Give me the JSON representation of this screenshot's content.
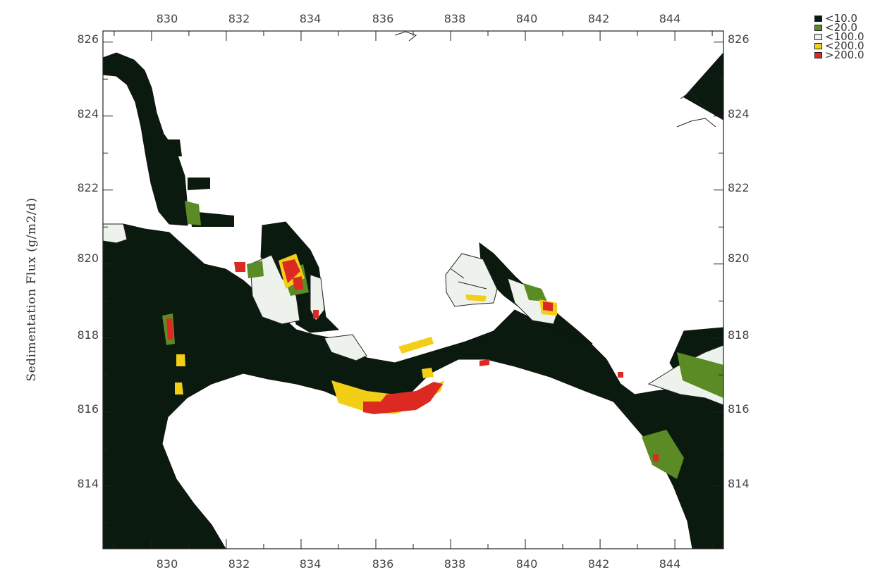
{
  "map": {
    "y_axis_label": "Sedimentation Flux (g/m2/d)",
    "x_ticks": [
      "830",
      "832",
      "834",
      "836",
      "838",
      "840",
      "842",
      "844"
    ],
    "y_ticks": [
      "826",
      "824",
      "822",
      "820",
      "818",
      "816",
      "814"
    ],
    "x_range": [
      828.7,
      845.3
    ],
    "y_range": [
      812.3,
      826.3
    ]
  },
  "legend": {
    "items": [
      {
        "label": "<10.0",
        "color": "#0b1a0e"
      },
      {
        "label": "<20.0",
        "color": "#5b8b24"
      },
      {
        "label": "<100.0",
        "color": "#eef2ec"
      },
      {
        "label": "<200.0",
        "color": "#f2cf16"
      },
      {
        "label": ">200.0",
        "color": "#dc2a22"
      }
    ]
  }
}
